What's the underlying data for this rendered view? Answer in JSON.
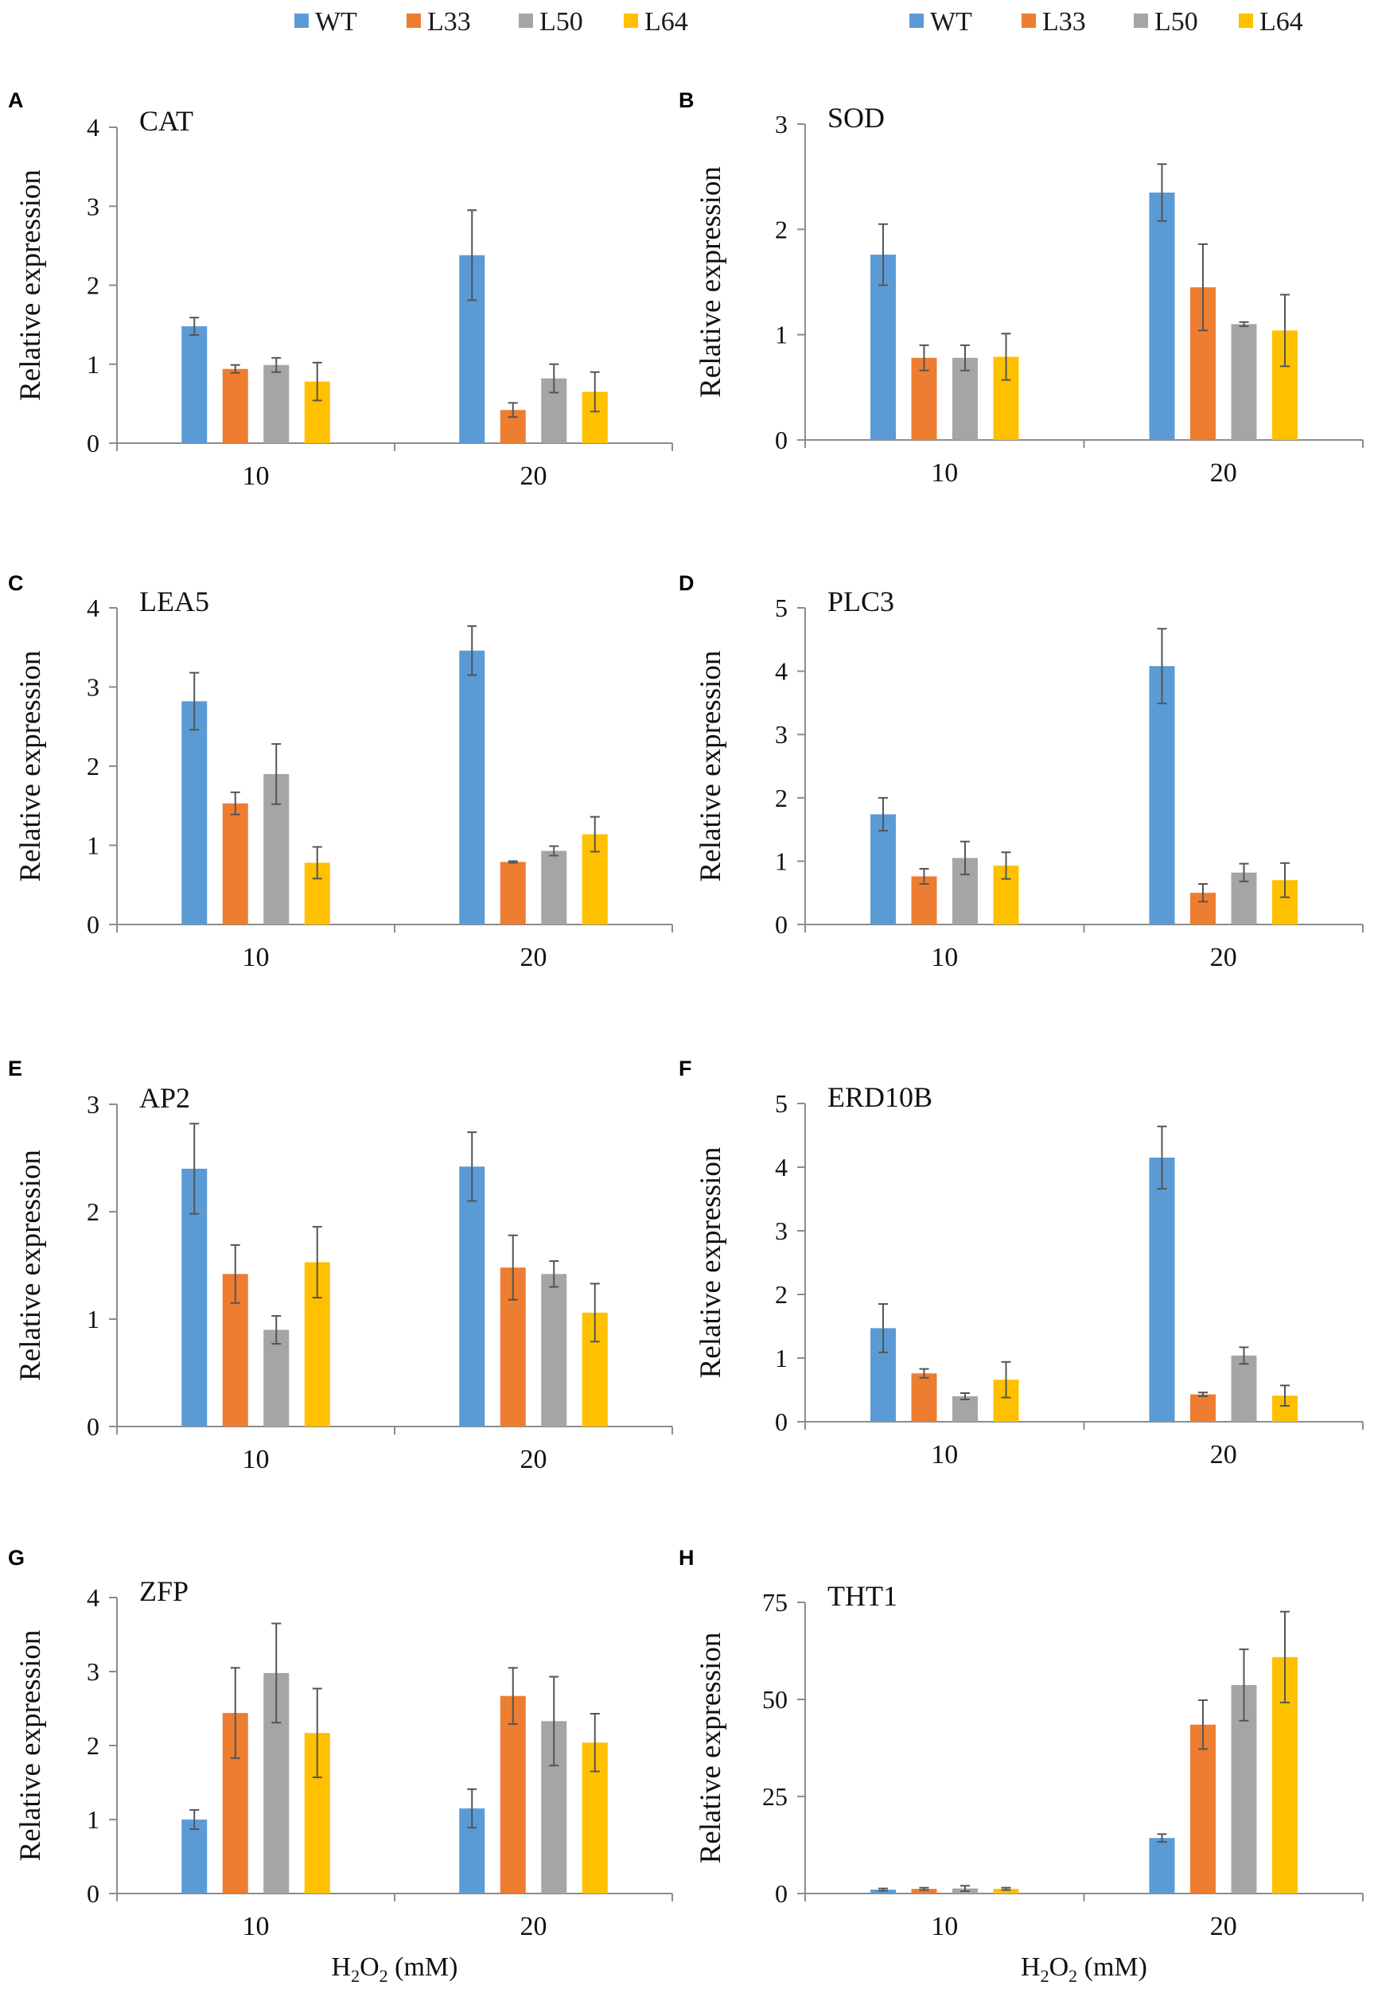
{
  "legend": [
    {
      "name": "WT",
      "color": "#5B9BD5"
    },
    {
      "name": "L33",
      "color": "#ED7D31"
    },
    {
      "name": "L50",
      "color": "#A5A5A5"
    },
    {
      "name": "L64",
      "color": "#FFC000"
    }
  ],
  "xlabel": {
    "prefix": "H",
    "sub": "2",
    "mid": "O",
    "sub2": "2",
    "suffix": " (mM)"
  },
  "ylabel": "Relative expression",
  "chart_data": [
    {
      "panel": "A",
      "type": "bar",
      "title": "CAT",
      "categories": [
        "10",
        "20"
      ],
      "ylim": [
        0,
        4
      ],
      "yticks": [
        0,
        1,
        2,
        3,
        4
      ],
      "ylabel": "Relative expression",
      "xlabel": "",
      "series": [
        {
          "name": "WT",
          "values": [
            1.48,
            2.38
          ],
          "errors": [
            0.11,
            0.57
          ]
        },
        {
          "name": "L33",
          "values": [
            0.94,
            0.42
          ],
          "errors": [
            0.05,
            0.09
          ]
        },
        {
          "name": "L50",
          "values": [
            0.99,
            0.82
          ],
          "errors": [
            0.09,
            0.18
          ]
        },
        {
          "name": "L64",
          "values": [
            0.78,
            0.65
          ],
          "errors": [
            0.24,
            0.25
          ]
        }
      ]
    },
    {
      "panel": "B",
      "type": "bar",
      "title": "SOD",
      "categories": [
        "10",
        "20"
      ],
      "ylim": [
        0,
        3
      ],
      "yticks": [
        0,
        1,
        2,
        3
      ],
      "ylabel": "Relative expression",
      "xlabel": "",
      "series": [
        {
          "name": "WT",
          "values": [
            1.76,
            2.35
          ],
          "errors": [
            0.29,
            0.27
          ]
        },
        {
          "name": "L33",
          "values": [
            0.78,
            1.45
          ],
          "errors": [
            0.12,
            0.41
          ]
        },
        {
          "name": "L50",
          "values": [
            0.78,
            1.1
          ],
          "errors": [
            0.12,
            0.02
          ]
        },
        {
          "name": "L64",
          "values": [
            0.79,
            1.04
          ],
          "errors": [
            0.22,
            0.34
          ]
        }
      ]
    },
    {
      "panel": "C",
      "type": "bar",
      "title": "LEA5",
      "categories": [
        "10",
        "20"
      ],
      "ylim": [
        0,
        4
      ],
      "yticks": [
        0,
        1,
        2,
        3,
        4
      ],
      "ylabel": "Relative expression",
      "xlabel": "",
      "series": [
        {
          "name": "WT",
          "values": [
            2.82,
            3.46
          ],
          "errors": [
            0.36,
            0.31
          ]
        },
        {
          "name": "L33",
          "values": [
            1.53,
            0.79
          ],
          "errors": [
            0.14,
            0.01
          ]
        },
        {
          "name": "L50",
          "values": [
            1.9,
            0.93
          ],
          "errors": [
            0.38,
            0.06
          ]
        },
        {
          "name": "L64",
          "values": [
            0.78,
            1.14
          ],
          "errors": [
            0.2,
            0.22
          ]
        }
      ]
    },
    {
      "panel": "D",
      "type": "bar",
      "title": "PLC3",
      "categories": [
        "10",
        "20"
      ],
      "ylim": [
        0,
        5
      ],
      "yticks": [
        0,
        1,
        2,
        3,
        4,
        5
      ],
      "ylabel": "Relative expression",
      "xlabel": "",
      "series": [
        {
          "name": "WT",
          "values": [
            1.74,
            4.08
          ],
          "errors": [
            0.26,
            0.59
          ]
        },
        {
          "name": "L33",
          "values": [
            0.76,
            0.5
          ],
          "errors": [
            0.12,
            0.14
          ]
        },
        {
          "name": "L50",
          "values": [
            1.05,
            0.82
          ],
          "errors": [
            0.26,
            0.14
          ]
        },
        {
          "name": "L64",
          "values": [
            0.93,
            0.7
          ],
          "errors": [
            0.21,
            0.27
          ]
        }
      ]
    },
    {
      "panel": "E",
      "type": "bar",
      "title": "AP2",
      "categories": [
        "10",
        "20"
      ],
      "ylim": [
        0,
        3
      ],
      "yticks": [
        0,
        1,
        2,
        3
      ],
      "ylabel": "Relative expression",
      "xlabel": "",
      "series": [
        {
          "name": "WT",
          "values": [
            2.4,
            2.42
          ],
          "errors": [
            0.42,
            0.32
          ]
        },
        {
          "name": "L33",
          "values": [
            1.42,
            1.48
          ],
          "errors": [
            0.27,
            0.3
          ]
        },
        {
          "name": "L50",
          "values": [
            0.9,
            1.42
          ],
          "errors": [
            0.13,
            0.12
          ]
        },
        {
          "name": "L64",
          "values": [
            1.53,
            1.06
          ],
          "errors": [
            0.33,
            0.27
          ]
        }
      ]
    },
    {
      "panel": "F",
      "type": "bar",
      "title": "ERD10B",
      "categories": [
        "10",
        "20"
      ],
      "ylim": [
        0,
        5
      ],
      "yticks": [
        0,
        1,
        2,
        3,
        4,
        5
      ],
      "ylabel": "Relative expression",
      "xlabel": "",
      "series": [
        {
          "name": "WT",
          "values": [
            1.47,
            4.15
          ],
          "errors": [
            0.38,
            0.49
          ]
        },
        {
          "name": "L33",
          "values": [
            0.76,
            0.43
          ],
          "errors": [
            0.07,
            0.03
          ]
        },
        {
          "name": "L50",
          "values": [
            0.4,
            1.04
          ],
          "errors": [
            0.05,
            0.13
          ]
        },
        {
          "name": "L64",
          "values": [
            0.66,
            0.41
          ],
          "errors": [
            0.28,
            0.16
          ]
        }
      ]
    },
    {
      "panel": "G",
      "type": "bar",
      "title": "ZFP",
      "categories": [
        "10",
        "20"
      ],
      "ylim": [
        0,
        4
      ],
      "yticks": [
        0,
        1,
        2,
        3,
        4
      ],
      "ylabel": "Relative expression",
      "xlabel": "H2O2 (mM)",
      "series": [
        {
          "name": "WT",
          "values": [
            1.0,
            1.15
          ],
          "errors": [
            0.13,
            0.26
          ]
        },
        {
          "name": "L33",
          "values": [
            2.44,
            2.67
          ],
          "errors": [
            0.61,
            0.38
          ]
        },
        {
          "name": "L50",
          "values": [
            2.98,
            2.33
          ],
          "errors": [
            0.67,
            0.6
          ]
        },
        {
          "name": "L64",
          "values": [
            2.17,
            2.04
          ],
          "errors": [
            0.6,
            0.39
          ]
        }
      ]
    },
    {
      "panel": "H",
      "type": "bar",
      "title": "THT1",
      "categories": [
        "10",
        "20"
      ],
      "ylim": [
        0,
        75
      ],
      "yticks": [
        0,
        25,
        50,
        75
      ],
      "ylabel": "Relative expression",
      "xlabel": "H2O2 (mM)",
      "series": [
        {
          "name": "WT",
          "values": [
            1.0,
            14.3
          ],
          "errors": [
            0.3,
            1.0
          ]
        },
        {
          "name": "L33",
          "values": [
            1.2,
            43.5
          ],
          "errors": [
            0.3,
            6.3
          ]
        },
        {
          "name": "L50",
          "values": [
            1.3,
            53.7
          ],
          "errors": [
            0.7,
            9.2
          ]
        },
        {
          "name": "L64",
          "values": [
            1.2,
            60.9
          ],
          "errors": [
            0.3,
            11.7
          ]
        }
      ]
    }
  ]
}
